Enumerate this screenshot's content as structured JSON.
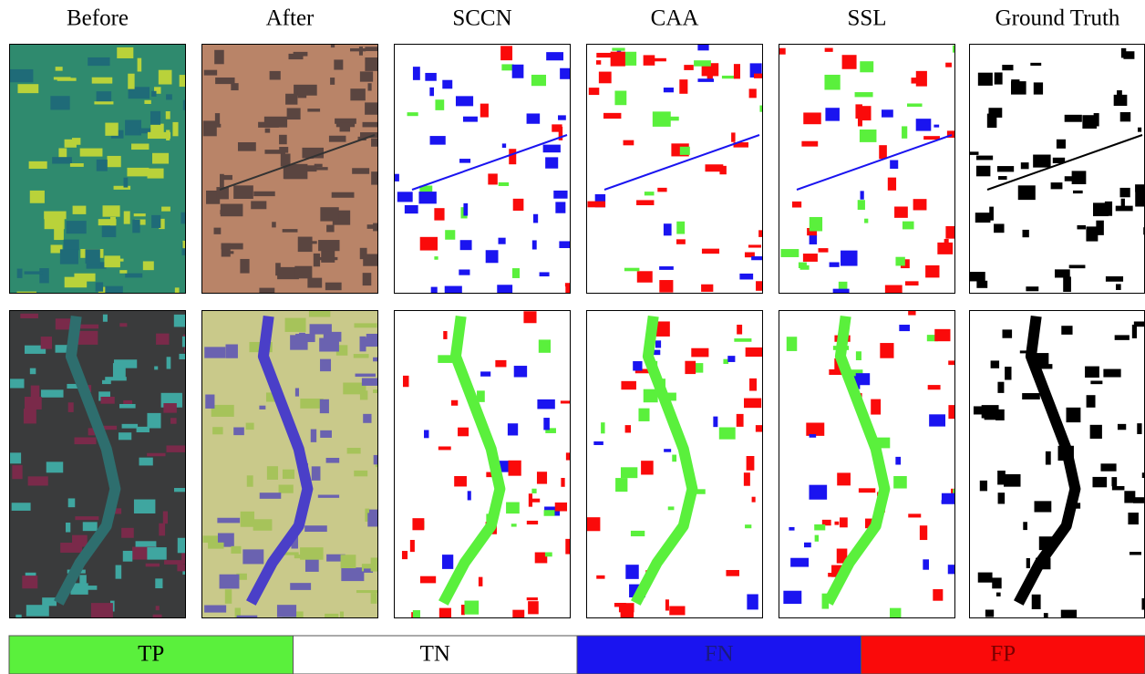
{
  "columns": [
    "Before",
    "After",
    "SCCN",
    "CAA",
    "SSL",
    "Ground Truth"
  ],
  "legend": [
    {
      "label": "TP",
      "color": "#5af03c"
    },
    {
      "label": "TN",
      "color": "#ffffff"
    },
    {
      "label": "FN",
      "color": "#1a14f0"
    },
    {
      "label": "FP",
      "color": "#fa0a0a"
    }
  ]
}
